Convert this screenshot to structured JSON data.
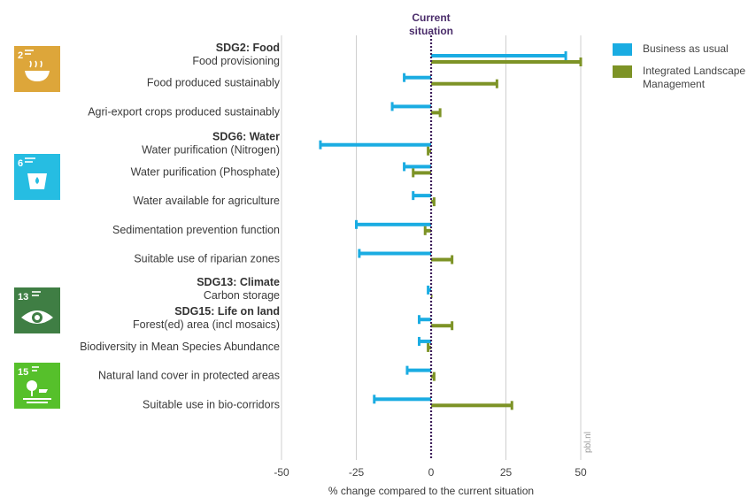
{
  "chart_data": {
    "type": "bar",
    "orientation": "horizontal",
    "header": "Current situation",
    "xlabel": "% change compared to the current situation",
    "xlim": [
      -50,
      50
    ],
    "xticks": [
      -50,
      -25,
      0,
      25,
      50
    ],
    "grid": true,
    "watermark": "pbl.nl",
    "legend_position": "right",
    "series": [
      {
        "name": "Business as usual",
        "color": "#1aace2"
      },
      {
        "name": "Integrated Landscape Management",
        "color": "#7d9326"
      }
    ],
    "groups": [
      {
        "heading": "SDG2: Food",
        "icon": "sdg2-zero-hunger-icon",
        "icon_color": "#dda63a",
        "items": [
          {
            "label": "Food provisioning",
            "values": [
              45,
              50
            ]
          },
          {
            "label": "Food produced sustainably",
            "values": [
              -9,
              22
            ]
          },
          {
            "label": "Agri-export crops produced sustainably",
            "values": [
              -13,
              3
            ]
          }
        ]
      },
      {
        "heading": "SDG6: Water",
        "icon": "sdg6-clean-water-icon",
        "icon_color": "#26bde2",
        "items": [
          {
            "label": "Water purification (Nitrogen)",
            "values": [
              -37,
              -1
            ]
          },
          {
            "label": "Water purification (Phosphate)",
            "values": [
              -9,
              -6
            ]
          },
          {
            "label": "Water available for agriculture",
            "values": [
              -6,
              1
            ]
          },
          {
            "label": "Sedimentation prevention function",
            "values": [
              -25,
              -2
            ]
          },
          {
            "label": "Suitable use of riparian zones",
            "values": [
              -24,
              7
            ]
          }
        ]
      },
      {
        "heading": "SDG13: Climate",
        "icon": "sdg13-climate-action-icon",
        "icon_color": "#3f7e44",
        "items": [
          {
            "label": "Carbon storage",
            "values": [
              -1,
              0
            ]
          }
        ]
      },
      {
        "heading": "SDG15: Life on land",
        "icon": "sdg15-life-on-land-icon",
        "icon_color": "#56c02b",
        "items": [
          {
            "label": "Forest(ed) area (incl mosaics)",
            "values": [
              -4,
              7
            ]
          },
          {
            "label": "Biodiversity in Mean Species Abundance",
            "values": [
              -4,
              -1
            ]
          },
          {
            "label": "Natural land cover in protected areas",
            "values": [
              -8,
              1
            ]
          },
          {
            "label": "Suitable use in bio-corridors",
            "values": [
              -19,
              27
            ]
          }
        ]
      }
    ]
  },
  "icons": {
    "sdg2": {
      "number": "2"
    },
    "sdg6": {
      "number": "6"
    },
    "sdg13": {
      "number": "13"
    },
    "sdg15": {
      "number": "15"
    }
  }
}
